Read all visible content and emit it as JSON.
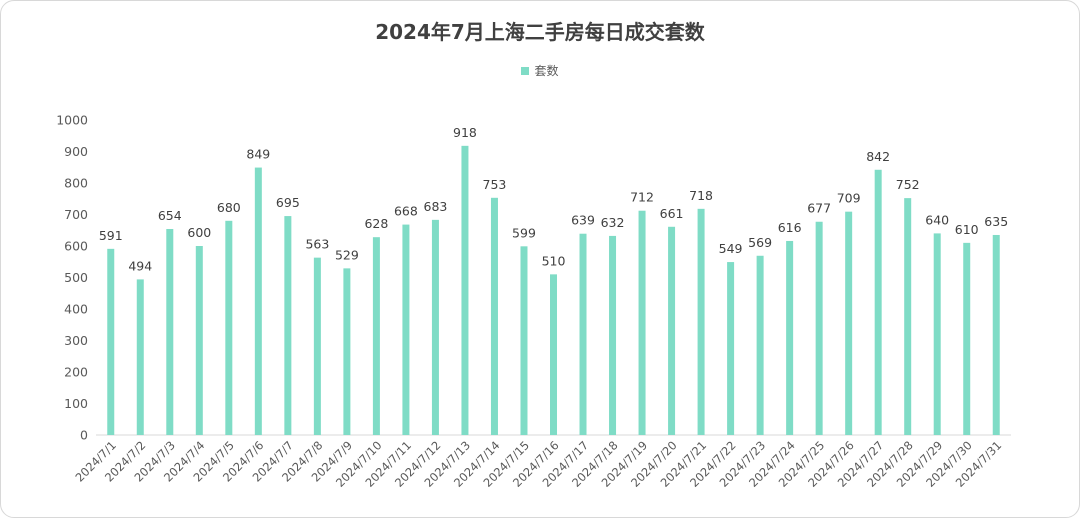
{
  "chart_data": {
    "type": "bar",
    "title": "2024年7月上海二手房每日成交套数",
    "xlabel": "",
    "ylabel": "",
    "ylim": [
      0,
      1000
    ],
    "yticks": [
      0,
      100,
      200,
      300,
      400,
      500,
      600,
      700,
      800,
      900,
      1000
    ],
    "legend_position": "top-center",
    "grid": false,
    "color": "#7fdcc6",
    "categories": [
      "2024/7/1",
      "2024/7/2",
      "2024/7/3",
      "2024/7/4",
      "2024/7/5",
      "2024/7/6",
      "2024/7/7",
      "2024/7/8",
      "2024/7/9",
      "2024/7/10",
      "2024/7/11",
      "2024/7/12",
      "2024/7/13",
      "2024/7/14",
      "2024/7/15",
      "2024/7/16",
      "2024/7/17",
      "2024/7/18",
      "2024/7/19",
      "2024/7/20",
      "2024/7/21",
      "2024/7/22",
      "2024/7/23",
      "2024/7/24",
      "2024/7/25",
      "2024/7/26",
      "2024/7/27",
      "2024/7/28",
      "2024/7/29",
      "2024/7/30",
      "2024/7/31"
    ],
    "series": [
      {
        "name": "套数",
        "values": [
          591,
          494,
          654,
          600,
          680,
          849,
          695,
          563,
          529,
          628,
          668,
          683,
          918,
          753,
          599,
          510,
          639,
          632,
          712,
          661,
          718,
          549,
          569,
          616,
          677,
          709,
          842,
          752,
          640,
          610,
          635
        ]
      }
    ]
  }
}
